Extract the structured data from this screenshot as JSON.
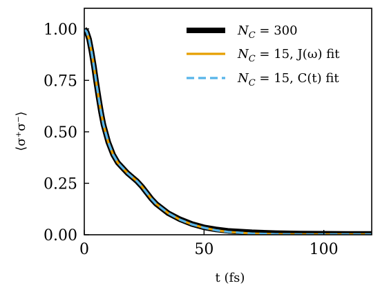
{
  "chart_data": {
    "type": "line",
    "xlabel": "t (fs)",
    "ylabel": "⟨σ⁺σ⁻⟩",
    "xlim": [
      0,
      120
    ],
    "ylim": [
      0,
      1.1
    ],
    "x_ticks": [
      "0",
      "50",
      "100"
    ],
    "y_ticks": [
      "0.00",
      "0.25",
      "0.50",
      "0.75",
      "1.00"
    ],
    "grid": false,
    "legend_position": "top-right",
    "series": [
      {
        "name": "N_C = 300",
        "color": "#000000",
        "style": "solid-thick",
        "x": [
          0,
          1,
          2,
          3,
          4,
          5,
          6,
          7,
          8,
          10,
          12,
          14,
          16,
          18,
          20,
          22,
          24,
          26,
          28,
          30,
          35,
          40,
          45,
          50,
          55,
          60,
          70,
          80,
          90,
          100,
          110,
          120
        ],
        "y": [
          1.0,
          0.985,
          0.95,
          0.89,
          0.82,
          0.74,
          0.665,
          0.595,
          0.535,
          0.45,
          0.39,
          0.35,
          0.325,
          0.3,
          0.28,
          0.26,
          0.235,
          0.205,
          0.175,
          0.15,
          0.105,
          0.075,
          0.052,
          0.036,
          0.026,
          0.019,
          0.012,
          0.008,
          0.006,
          0.005,
          0.004,
          0.004
        ]
      },
      {
        "name": "N_C = 15, J(ω) fit",
        "color": "#E69F00",
        "style": "solid",
        "x": [
          0,
          1,
          2,
          3,
          4,
          5,
          6,
          7,
          8,
          10,
          12,
          14,
          16,
          18,
          20,
          22,
          24,
          26,
          28,
          30,
          35,
          40,
          45,
          50,
          55,
          60,
          70,
          80,
          90,
          100,
          110,
          120
        ],
        "y": [
          1.0,
          0.985,
          0.95,
          0.89,
          0.82,
          0.74,
          0.665,
          0.595,
          0.535,
          0.45,
          0.39,
          0.35,
          0.325,
          0.3,
          0.28,
          0.26,
          0.235,
          0.205,
          0.175,
          0.15,
          0.105,
          0.073,
          0.05,
          0.034,
          0.022,
          0.014,
          0.006,
          0.003,
          0.002,
          0.002,
          0.002,
          0.002
        ]
      },
      {
        "name": "N_C = 15, C(t) fit",
        "color": "#56B4E9",
        "style": "dashed",
        "x": [
          0,
          1,
          2,
          3,
          4,
          5,
          6,
          7,
          8,
          10,
          12,
          14,
          16,
          18,
          20,
          22,
          24,
          26,
          28,
          30,
          35,
          40,
          45,
          50,
          55,
          60,
          70,
          80,
          90,
          100,
          110,
          120
        ],
        "y": [
          1.0,
          0.985,
          0.95,
          0.89,
          0.82,
          0.74,
          0.665,
          0.595,
          0.535,
          0.45,
          0.39,
          0.35,
          0.325,
          0.3,
          0.28,
          0.26,
          0.235,
          0.205,
          0.175,
          0.15,
          0.105,
          0.073,
          0.05,
          0.034,
          0.022,
          0.014,
          0.006,
          0.003,
          0.002,
          0.002,
          0.002,
          0.002
        ]
      }
    ],
    "legend": {
      "entries": [
        {
          "prefix": "N",
          "sub": "C",
          "suffix": " = 300"
        },
        {
          "prefix": "N",
          "sub": "C",
          "suffix": " = 15, J(ω) fit"
        },
        {
          "prefix": "N",
          "sub": "C",
          "suffix": " = 15, C(t) fit"
        }
      ]
    }
  }
}
